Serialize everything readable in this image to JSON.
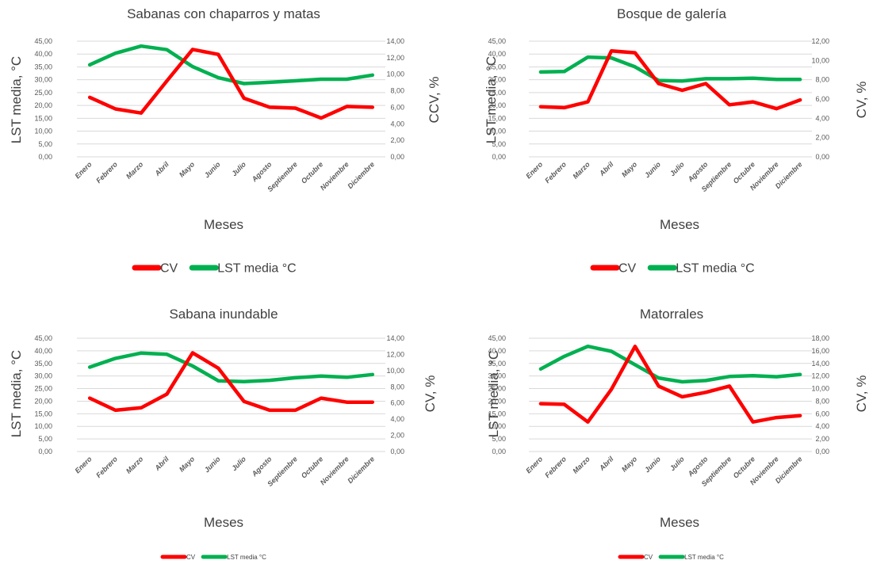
{
  "chart_data": [
    {
      "type": "line",
      "title": "Sabanas con chaparros y matas",
      "xlabel": "Meses",
      "ylabel": "LST media, °C",
      "y2label": "CCV, %",
      "categories": [
        "Enero",
        "Febrero",
        "Marzo",
        "Abril",
        "Mayo",
        "Junio",
        "Julio",
        "Agosto",
        "Septiembre",
        "Octubre",
        "Noviembre",
        "Diciembre"
      ],
      "yticks": [
        "0,00",
        "5,00",
        "10,00",
        "15,00",
        "20,00",
        "25,00",
        "30,00",
        "35,00",
        "40,00",
        "45,00"
      ],
      "y2ticks": [
        "0,00",
        "2,00",
        "4,00",
        "6,00",
        "8,00",
        "10,00",
        "12,00",
        "14,00"
      ],
      "ylim": [
        0,
        45
      ],
      "y2lim": [
        0,
        14
      ],
      "series": [
        {
          "name": "CV",
          "axis": "right",
          "color": "#ff0000",
          "values": [
            7.2,
            5.8,
            5.3,
            9.2,
            13.0,
            12.4,
            7.1,
            6.0,
            5.9,
            4.7,
            6.1,
            6.0
          ]
        },
        {
          "name": "LST media °C",
          "axis": "left",
          "color": "#00b050",
          "values": [
            35.8,
            40.3,
            43.1,
            41.7,
            35.1,
            30.8,
            28.5,
            29.0,
            29.6,
            30.2,
            30.2,
            31.8
          ]
        }
      ],
      "legend_position": "bottom",
      "grid": true
    },
    {
      "type": "line",
      "title": "Bosque de galería",
      "xlabel": "Meses",
      "ylabel": "LST media, °C",
      "y2label": "CV, %",
      "categories": [
        "Enero",
        "Febrero",
        "Marzo",
        "Abril",
        "Mayo",
        "Junio",
        "Julio",
        "Agosto",
        "Septiembre",
        "Octubre",
        "Noviembre",
        "Diciembre"
      ],
      "yticks": [
        "0,00",
        "5,00",
        "10,00",
        "15,00",
        "20,00",
        "25,00",
        "30,00",
        "35,00",
        "40,00",
        "45,00"
      ],
      "y2ticks": [
        "0,00",
        "2,00",
        "4,00",
        "6,00",
        "8,00",
        "10,00",
        "12,00"
      ],
      "ylim": [
        0,
        45
      ],
      "y2lim": [
        0,
        12
      ],
      "series": [
        {
          "name": "CV",
          "axis": "right",
          "color": "#ff0000",
          "values": [
            5.2,
            5.1,
            5.7,
            11.0,
            10.8,
            7.6,
            6.9,
            7.6,
            5.4,
            5.7,
            5.0,
            5.9
          ]
        },
        {
          "name": "LST media °C",
          "axis": "left",
          "color": "#00b050",
          "values": [
            33.0,
            33.2,
            38.8,
            38.5,
            35.0,
            29.7,
            29.5,
            30.4,
            30.4,
            30.6,
            30.1,
            30.1
          ]
        }
      ],
      "legend_position": "bottom",
      "grid": true
    },
    {
      "type": "line",
      "title": "Sabana inundable",
      "xlabel": "Meses",
      "ylabel": "LST media, °C",
      "y2label": "CV, %",
      "categories": [
        "Enero",
        "Febrero",
        "Marzo",
        "Abril",
        "Mayo",
        "Junio",
        "Julio",
        "Agosto",
        "Septiembre",
        "Octubre",
        "Noviembre",
        "Diciembre"
      ],
      "yticks": [
        "0,00",
        "5,00",
        "10,00",
        "15,00",
        "20,00",
        "25,00",
        "30,00",
        "35,00",
        "40,00",
        "45,00"
      ],
      "y2ticks": [
        "0,00",
        "2,00",
        "4,00",
        "6,00",
        "8,00",
        "10,00",
        "12,00",
        "14,00"
      ],
      "ylim": [
        0,
        45
      ],
      "y2lim": [
        0,
        14
      ],
      "series": [
        {
          "name": "CV",
          "axis": "right",
          "color": "#ff0000",
          "values": [
            6.6,
            5.1,
            5.4,
            7.1,
            12.2,
            10.3,
            6.2,
            5.1,
            5.1,
            6.6,
            6.1,
            6.1
          ]
        },
        {
          "name": "LST media °C",
          "axis": "left",
          "color": "#00b050",
          "values": [
            33.5,
            37.0,
            39.1,
            38.6,
            34.0,
            28.1,
            27.8,
            28.3,
            29.3,
            30.0,
            29.5,
            30.6
          ]
        }
      ],
      "legend_position": "bottom",
      "grid": true
    },
    {
      "type": "line",
      "title": "Matorrales",
      "xlabel": "Meses",
      "ylabel": "LST media, °C",
      "y2label": "CV, %",
      "categories": [
        "Enero",
        "Febrero",
        "Marzo",
        "Abril",
        "Mayo",
        "Junio",
        "Julio",
        "Agosto",
        "Septiembre",
        "Octubre",
        "Noviembre",
        "Diciembre"
      ],
      "yticks": [
        "0,00",
        "5,00",
        "10,00",
        "15,00",
        "20,00",
        "25,00",
        "30,00",
        "35,00",
        "40,00",
        "45,00"
      ],
      "y2ticks": [
        "0,00",
        "2,00",
        "4,00",
        "6,00",
        "8,00",
        "10,00",
        "12,00",
        "14,00",
        "16,00",
        "18,00"
      ],
      "ylim": [
        0,
        45
      ],
      "y2lim": [
        0,
        18
      ],
      "series": [
        {
          "name": "CV",
          "axis": "right",
          "color": "#ff0000",
          "values": [
            7.6,
            7.5,
            4.7,
            9.9,
            16.7,
            10.4,
            8.7,
            9.4,
            10.4,
            4.7,
            5.4,
            5.7
          ]
        },
        {
          "name": "LST media °C",
          "axis": "left",
          "color": "#00b050",
          "values": [
            32.8,
            37.8,
            41.8,
            39.8,
            34.5,
            29.2,
            27.7,
            28.2,
            29.8,
            30.1,
            29.7,
            30.6
          ]
        }
      ],
      "legend_position": "bottom",
      "grid": true
    }
  ]
}
